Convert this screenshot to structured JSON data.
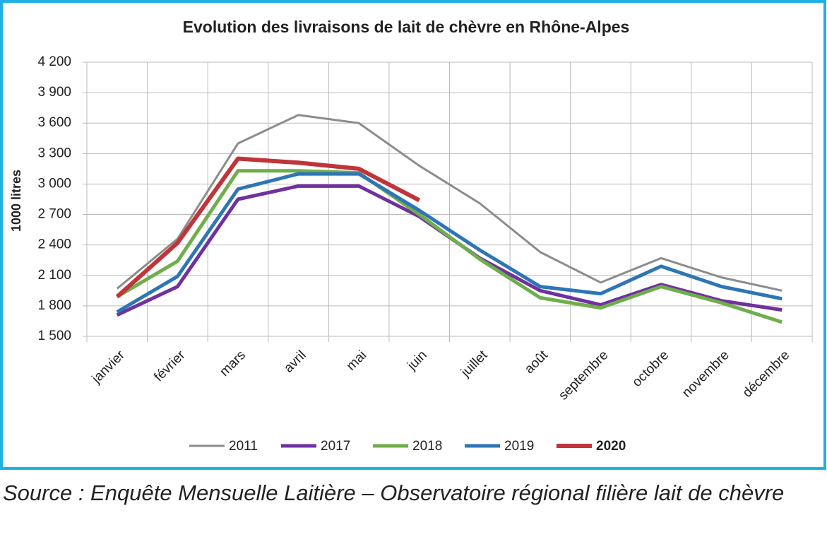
{
  "chart_data": {
    "type": "line",
    "title": "Evolution des livraisons de lait de chèvre en Rhône-Alpes",
    "y_label": "1000 litres",
    "categories": [
      "janvier",
      "février",
      "mars",
      "avril",
      "mai",
      "juin",
      "juillet",
      "août",
      "septembre",
      "octobre",
      "novembre",
      "décembre"
    ],
    "series": [
      {
        "name": "2011",
        "color": "#8c8c8c",
        "values": [
          1970,
          2460,
          3400,
          3680,
          3600,
          3180,
          2810,
          2330,
          2030,
          2270,
          2080,
          1950
        ]
      },
      {
        "name": "2017",
        "color": "#7030a0",
        "values": [
          1710,
          1990,
          2850,
          2980,
          2980,
          2680,
          2270,
          1950,
          1810,
          2010,
          1850,
          1760
        ]
      },
      {
        "name": "2018",
        "color": "#6fae4b",
        "values": [
          1890,
          2240,
          3130,
          3130,
          3110,
          2700,
          2260,
          1880,
          1780,
          1990,
          1830,
          1640
        ]
      },
      {
        "name": "2019",
        "color": "#2e75b6",
        "values": [
          1740,
          2090,
          2950,
          3100,
          3100,
          2740,
          2350,
          1990,
          1920,
          2190,
          1990,
          1870
        ]
      },
      {
        "name": "2020",
        "color": "#c0343a",
        "values": [
          1890,
          2420,
          3250,
          3210,
          3150,
          2840,
          null,
          null,
          null,
          null,
          null,
          null
        ]
      }
    ],
    "ylim": [
      1500,
      4200
    ],
    "yticks": [
      {
        "value": 1500,
        "label": "1 500"
      },
      {
        "value": 1800,
        "label": "1 800"
      },
      {
        "value": 2100,
        "label": "2 100"
      },
      {
        "value": 2400,
        "label": "2 400"
      },
      {
        "value": 2700,
        "label": "2 700"
      },
      {
        "value": 3000,
        "label": "3 000"
      },
      {
        "value": 3300,
        "label": "3 300"
      },
      {
        "value": 3600,
        "label": "3 600"
      },
      {
        "value": 3900,
        "label": "3 900"
      },
      {
        "value": 4200,
        "label": "4 200"
      }
    ],
    "grid": true,
    "legend": "bottom",
    "source": "Source : Enquête Mensuelle Laitière – Observatoire régional filière lait de chèvre"
  }
}
